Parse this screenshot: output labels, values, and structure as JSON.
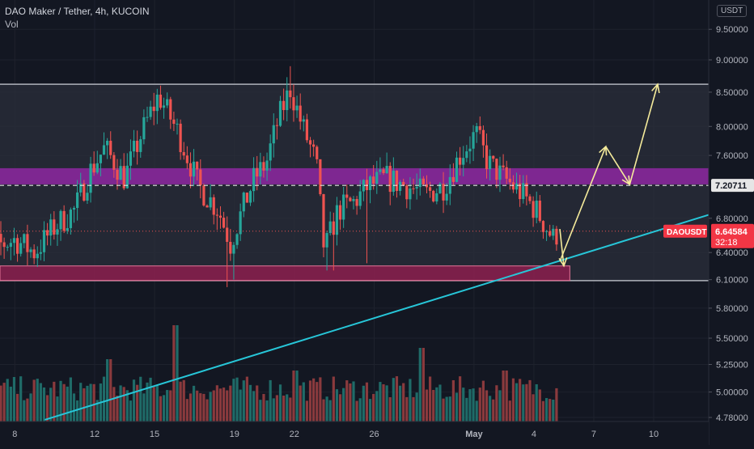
{
  "header": {
    "title": "DAO Maker / Tether, 4h, KUCOIN",
    "volume_label": "Vol",
    "currency": "USDT"
  },
  "price_axis": {
    "ticks": [
      "9.50000",
      "9.00000",
      "8.50000",
      "8.00000",
      "7.60000",
      "6.80000",
      "6.40000",
      "6.10000",
      "5.80000",
      "5.50000",
      "5.25000",
      "5.00000",
      "4.78000"
    ],
    "tick_values": [
      9.5,
      9.0,
      8.5,
      8.0,
      7.6,
      6.8,
      6.4,
      6.1,
      5.8,
      5.5,
      5.25,
      5.0,
      4.78
    ],
    "reference_line": {
      "label": "7.20711",
      "value": 7.20711
    },
    "last_price": {
      "symbol": "DAOUSDT",
      "price": "6.64584",
      "countdown": "32:18",
      "value": 6.64584
    }
  },
  "time_axis": {
    "labels": [
      "8",
      "12",
      "15",
      "19",
      "22",
      "26",
      "May",
      "4",
      "7",
      "10"
    ],
    "label_days": [
      -23,
      -19,
      -16,
      -12,
      -9,
      -5,
      0,
      3,
      6,
      9
    ]
  },
  "drawings": {
    "range_top": 8.62,
    "range_bottom": 6.09,
    "resistance_zone": [
      7.22,
      7.43
    ],
    "support_zone": [
      6.09,
      6.25
    ]
  },
  "chart_data": {
    "type": "candlestick",
    "symbol": "DAOUSDT",
    "timeframe": "4h",
    "exchange": "KUCOIN",
    "x_unit": "days relative to May 1",
    "anchors": [
      {
        "x": -25.2,
        "y": 6.6
      },
      {
        "x": -24.2,
        "y": 6.45
      },
      {
        "x": -23.0,
        "y": 6.55
      },
      {
        "x": -22.0,
        "y": 6.4
      },
      {
        "x": -21.0,
        "y": 6.7
      },
      {
        "x": -20.0,
        "y": 6.9
      },
      {
        "x": -19.2,
        "y": 7.4
      },
      {
        "x": -18.5,
        "y": 7.7
      },
      {
        "x": -17.5,
        "y": 7.3
      },
      {
        "x": -16.5,
        "y": 8.0
      },
      {
        "x": -15.8,
        "y": 8.45
      },
      {
        "x": -14.8,
        "y": 7.9
      },
      {
        "x": -13.8,
        "y": 7.2
      },
      {
        "x": -12.8,
        "y": 6.9
      },
      {
        "x": -12.2,
        "y": 6.5
      },
      {
        "x": -11.6,
        "y": 6.9
      },
      {
        "x": -11.0,
        "y": 7.3
      },
      {
        "x": -10.4,
        "y": 7.5
      },
      {
        "x": -9.8,
        "y": 8.1
      },
      {
        "x": -9.2,
        "y": 8.55
      },
      {
        "x": -8.6,
        "y": 8.0
      },
      {
        "x": -7.9,
        "y": 7.5
      },
      {
        "x": -7.5,
        "y": 6.4
      },
      {
        "x": -6.8,
        "y": 6.9
      },
      {
        "x": -6.0,
        "y": 7.0
      },
      {
        "x": -5.3,
        "y": 7.2
      },
      {
        "x": -4.4,
        "y": 7.3
      },
      {
        "x": -3.4,
        "y": 7.2
      },
      {
        "x": -2.4,
        "y": 7.1
      },
      {
        "x": -1.5,
        "y": 7.2
      },
      {
        "x": -0.7,
        "y": 7.6
      },
      {
        "x": 0.1,
        "y": 7.9
      },
      {
        "x": 0.7,
        "y": 7.5
      },
      {
        "x": 1.5,
        "y": 7.3
      },
      {
        "x": 2.4,
        "y": 7.1
      },
      {
        "x": 3.1,
        "y": 6.9
      },
      {
        "x": 3.6,
        "y": 6.7
      },
      {
        "x": 4.0,
        "y": 6.55
      },
      {
        "x": 4.2,
        "y": 6.65
      }
    ],
    "trend_line": [
      {
        "x": -21.5,
        "y": 4.76
      },
      {
        "x": 12.0,
        "y": 6.86
      }
    ],
    "projected_path": [
      {
        "x": 4.3,
        "y": 6.3
      },
      {
        "x": 4.5,
        "y": 6.25
      },
      {
        "x": 6.6,
        "y": 7.72
      },
      {
        "x": 7.8,
        "y": 7.22
      },
      {
        "x": 9.2,
        "y": 8.62
      }
    ],
    "volume_peaks": [
      {
        "x": -18.3,
        "height": 0.55
      },
      {
        "x": -15.0,
        "height": 0.85
      },
      {
        "x": -8.9,
        "height": 0.45
      },
      {
        "x": -5.4,
        "height": 0.25
      },
      {
        "x": -2.6,
        "height": 0.65
      },
      {
        "x": 1.6,
        "height": 0.45
      }
    ],
    "ylim": [
      4.72,
      9.72
    ],
    "xlim": [
      -25.3,
      11.8
    ],
    "grid": true
  },
  "colors": {
    "background": "#131722",
    "bull": "#26a69a",
    "bear": "#ef5350",
    "bull_volume": "#1f6b68",
    "bear_volume": "#8a3a3d",
    "range_fill": "#2b2f3b",
    "range_border": "#b0b3bb",
    "resistance": "#9c27b0",
    "support": "#c2185b",
    "trend": "#27c6d8",
    "projection": "#f5eb9b",
    "label_red": "#f23645",
    "axis_text": "#b2b5be"
  }
}
